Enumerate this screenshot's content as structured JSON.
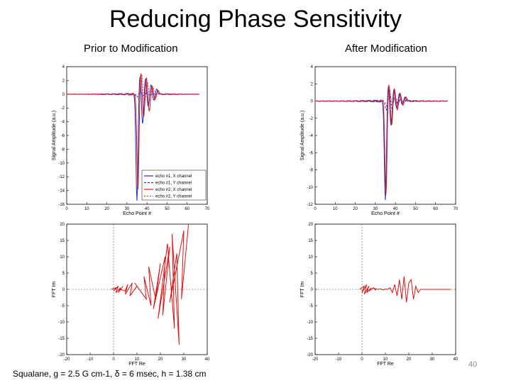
{
  "slide": {
    "title": "Reducing Phase Sensitivity",
    "left_heading": "Prior to Modification",
    "right_heading": "After Modification",
    "footer": "Squalane, g = 2.5 G cm-1, δ = 6 msec, h = 1.38 cm",
    "page_number": "40"
  },
  "colors": {
    "x1": "#1a2fd0",
    "y1": "#2b2bd8",
    "x2": "#d81818",
    "y2": "#e03c3c",
    "fft": "#e01010",
    "axis": "#000000"
  },
  "chart_data": [
    {
      "id": "echo-before",
      "type": "line",
      "xlabel": "Echo Point #",
      "ylabel": "Signal Amplitude (a.u.)",
      "xlim": [
        0,
        70
      ],
      "ylim": [
        -16,
        4
      ],
      "xticks": [
        0,
        10,
        20,
        30,
        40,
        50,
        60,
        70
      ],
      "yticks": [
        4,
        2,
        0,
        -2,
        -4,
        -6,
        -8,
        -10,
        -12,
        -14,
        -16
      ],
      "legend": [
        "echo #1, X channel",
        "echo #1, Y channel",
        "echo #2, X channel",
        "echo #2, Y channel"
      ],
      "center": 35,
      "series": [
        {
          "name": "echo #1, X channel",
          "amps": [
            -15.5,
            3.0,
            -4.5,
            2.5,
            -2.0,
            1.5,
            -1.0,
            0.8
          ],
          "shift": 0
        },
        {
          "name": "echo #1, Y channel",
          "amps": [
            -0.3,
            0.2,
            -0.1,
            0.1,
            0,
            0,
            0,
            0
          ],
          "shift": 0
        },
        {
          "name": "echo #2, X channel",
          "amps": [
            -14.0,
            3.5,
            -3.5,
            2.5,
            -2.5,
            1.2,
            -0.8,
            0.6
          ],
          "shift": 0.5
        },
        {
          "name": "echo #2, Y channel",
          "amps": [
            -1.0,
            3.0,
            -2.0,
            2.0,
            -1.0,
            1.0,
            -0.5,
            0.4
          ],
          "shift": 1
        }
      ]
    },
    {
      "id": "echo-after",
      "type": "line",
      "xlabel": "Echo Point #",
      "ylabel": "Signal Amplitude (a.u.)",
      "xlim": [
        0,
        70
      ],
      "ylim": [
        -12,
        4
      ],
      "xticks": [
        0,
        10,
        20,
        30,
        40,
        50,
        60,
        70
      ],
      "yticks": [
        4,
        2,
        0,
        -2,
        -4,
        -6,
        -8,
        -10,
        -12
      ],
      "legend": [],
      "center": 35,
      "series": [
        {
          "name": "echo #1, X channel",
          "amps": [
            -11.5,
            2.0,
            -3.0,
            1.5,
            -1.0,
            1.0,
            -0.5,
            0.5
          ],
          "shift": 0
        },
        {
          "name": "echo #1, Y channel",
          "amps": [
            -1.0,
            1.5,
            -0.8,
            0.6,
            -0.4,
            0.3,
            -0.2,
            0.1
          ],
          "shift": 0.5
        },
        {
          "name": "echo #2, X channel",
          "amps": [
            -11.0,
            2.2,
            -2.8,
            1.4,
            -1.0,
            0.9,
            -0.5,
            0.5
          ],
          "shift": 0.3
        },
        {
          "name": "echo #2, Y channel",
          "amps": [
            -0.8,
            1.2,
            -0.6,
            0.5,
            -0.3,
            0.2,
            -0.1,
            0.1
          ],
          "shift": 0.8
        }
      ]
    },
    {
      "id": "fft-before",
      "type": "line",
      "xlabel": "FFT Re",
      "ylabel": "FFT Im",
      "xlim": [
        -20,
        40
      ],
      "ylim": [
        -20,
        20
      ],
      "xticks": [
        -20,
        -10,
        0,
        10,
        20,
        30,
        40
      ],
      "yticks": [
        20,
        15,
        10,
        5,
        0,
        -5,
        -10,
        -15,
        -20
      ],
      "x": [
        -1,
        1,
        0,
        2,
        1,
        3,
        2,
        4,
        3,
        5,
        6,
        5,
        8,
        7,
        10,
        12,
        9,
        14,
        13,
        16,
        15,
        18,
        20,
        17,
        22,
        21,
        24,
        19,
        23,
        26,
        25,
        28,
        27,
        24,
        30,
        29,
        32
      ],
      "y": [
        0,
        0.5,
        -0.5,
        1,
        -1,
        0.5,
        -1,
        1,
        0,
        -0.5,
        1.5,
        -1.5,
        2,
        -2,
        1,
        -1,
        2,
        -3,
        4,
        -5,
        7,
        -3,
        8,
        -6,
        10,
        -8,
        13,
        -9,
        14,
        -12,
        17,
        -17,
        11,
        -4,
        18,
        -3,
        20
      ]
    },
    {
      "id": "fft-after",
      "type": "line",
      "xlabel": "FFT Re",
      "ylabel": "FFT Im",
      "xlim": [
        -20,
        40
      ],
      "ylim": [
        -20,
        20
      ],
      "xticks": [
        -20,
        -10,
        0,
        10,
        20,
        30,
        40
      ],
      "yticks": [
        20,
        15,
        10,
        5,
        0,
        -5,
        -10,
        -15,
        -20
      ],
      "x": [
        -1,
        1,
        0,
        2,
        1,
        3,
        2,
        4,
        3,
        5,
        6,
        5,
        7,
        8,
        9,
        10,
        11,
        12,
        13,
        14,
        15,
        16,
        17,
        18,
        19,
        20,
        21,
        22,
        23,
        24,
        25,
        26,
        28,
        30,
        32,
        35,
        38
      ],
      "y": [
        0,
        1,
        -1,
        1.5,
        -1.5,
        1,
        -1,
        0.5,
        -0.5,
        0.5,
        -0.3,
        0.3,
        0,
        0.2,
        -0.2,
        0.1,
        0,
        0.5,
        -1,
        1.5,
        -2,
        3,
        -3,
        4,
        -4,
        2,
        3,
        -3,
        1,
        -1,
        0,
        0,
        0,
        0,
        0,
        0,
        0
      ]
    }
  ]
}
